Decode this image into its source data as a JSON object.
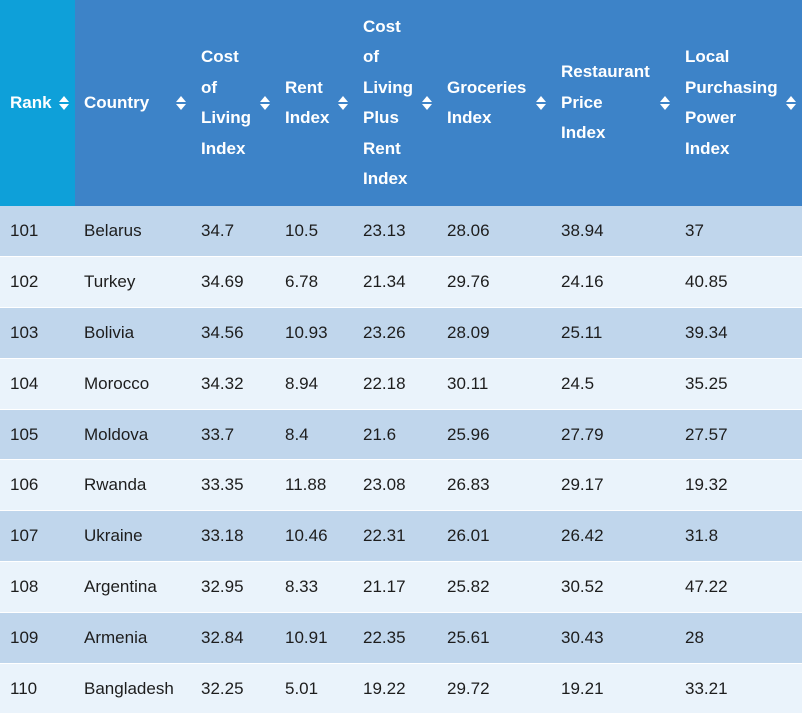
{
  "table": {
    "columns": [
      {
        "key": "rank",
        "label_lines": [
          "Rank"
        ]
      },
      {
        "key": "country",
        "label_lines": [
          "Country"
        ]
      },
      {
        "key": "cost_of_living_index",
        "label_lines": [
          "Cost",
          "of",
          "Living",
          "Index"
        ]
      },
      {
        "key": "rent_index",
        "label_lines": [
          "Rent",
          "Index"
        ]
      },
      {
        "key": "cost_of_living_plus_rent_index",
        "label_lines": [
          "Cost",
          "of",
          "Living",
          "Plus",
          "Rent",
          "Index"
        ]
      },
      {
        "key": "groceries_index",
        "label_lines": [
          "Groceries",
          "Index"
        ]
      },
      {
        "key": "restaurant_price_index",
        "label_lines": [
          "Restaurant",
          "Price",
          "Index"
        ]
      },
      {
        "key": "local_purchasing_power_index",
        "label_lines": [
          "Local",
          "Purchasing",
          "Power",
          "Index"
        ]
      }
    ],
    "rows": [
      [
        "101",
        "Belarus",
        "34.7",
        "10.5",
        "23.13",
        "28.06",
        "38.94",
        "37"
      ],
      [
        "102",
        "Turkey",
        "34.69",
        "6.78",
        "21.34",
        "29.76",
        "24.16",
        "40.85"
      ],
      [
        "103",
        "Bolivia",
        "34.56",
        "10.93",
        "23.26",
        "28.09",
        "25.11",
        "39.34"
      ],
      [
        "104",
        "Morocco",
        "34.32",
        "8.94",
        "22.18",
        "30.11",
        "24.5",
        "35.25"
      ],
      [
        "105",
        "Moldova",
        "33.7",
        "8.4",
        "21.6",
        "25.96",
        "27.79",
        "27.57"
      ],
      [
        "106",
        "Rwanda",
        "33.35",
        "11.88",
        "23.08",
        "26.83",
        "29.17",
        "19.32"
      ],
      [
        "107",
        "Ukraine",
        "33.18",
        "10.46",
        "22.31",
        "26.01",
        "26.42",
        "31.8"
      ],
      [
        "108",
        "Argentina",
        "32.95",
        "8.33",
        "21.17",
        "25.82",
        "30.52",
        "47.22"
      ],
      [
        "109",
        "Armenia",
        "32.84",
        "10.91",
        "22.35",
        "25.61",
        "30.43",
        "28"
      ],
      [
        "110",
        "Bangladesh",
        "32.25",
        "5.01",
        "19.22",
        "29.72",
        "19.21",
        "33.21"
      ]
    ]
  },
  "icons": {
    "sort": "sort-arrows-icon"
  },
  "colors": {
    "rank_header": "#0ea0d9",
    "header": "#3d83c8",
    "row_odd": "#c0d6ec",
    "row_even": "#eaf3fb"
  }
}
